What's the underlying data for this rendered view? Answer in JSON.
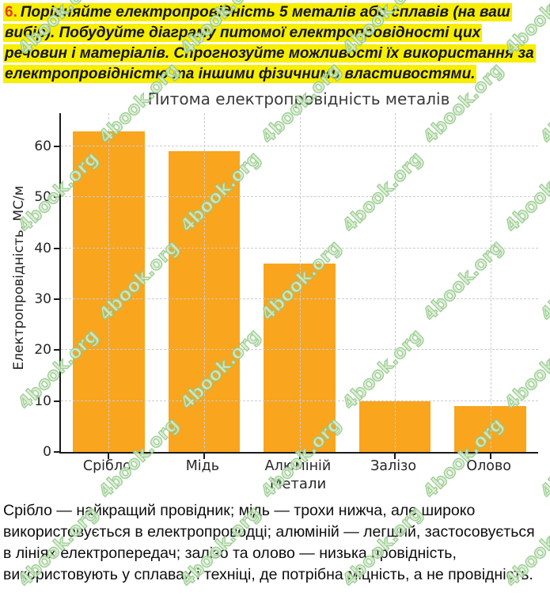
{
  "task": {
    "number": "6.",
    "text": "Порівняйте електропровідність 5 металів або сплавів (на ваш вибір). Побудуйте діаграму питомої електропровідності цих речовин і матеріалів. Спрогнозуйте можливості їх використання за електропровідністю та іншими фізичними властивостями.",
    "highlight_color": "#f7ee00",
    "number_color": "#e23b2a"
  },
  "chart_data": {
    "type": "bar",
    "title": "Питома електропровідність металів",
    "categories": [
      "Срібло",
      "Мідь",
      "Алюміній",
      "Залізо",
      "Олово"
    ],
    "values": [
      63,
      59,
      37,
      10,
      9
    ],
    "xlabel": "Метали",
    "ylabel": "Електропровідність, МС/м",
    "ylim": [
      0,
      66.5
    ],
    "yticks": [
      0,
      10,
      20,
      30,
      40,
      50,
      60
    ],
    "bar_color": "#f9a51e",
    "grid": "dashed-both-axes",
    "legend": "none"
  },
  "answer": {
    "text": "Срібло — найкращий провідник; мідь — трохи нижча, але широко використовується в електропроводці; алюміній — легший, застосовується в лініях електропередач; залізо та олово — низька провідність, використовують у сплавах і техніці, де потрібна міцність, а не провідність."
  },
  "watermark": {
    "text": "4book.org",
    "color": "#8fc586"
  }
}
